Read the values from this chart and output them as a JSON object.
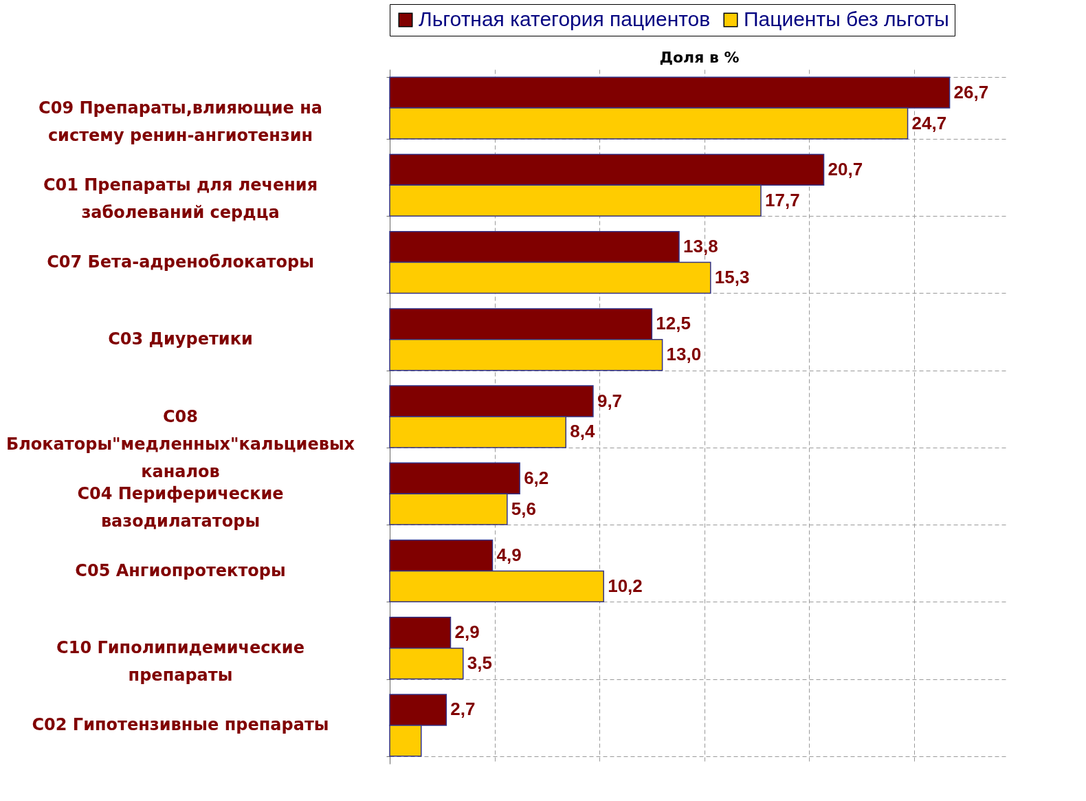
{
  "chart_data": {
    "type": "bar",
    "orientation": "horizontal",
    "xlabel": "Доля в %",
    "categories": [
      "C09 Препараты,влияющие на систему ренин-ангиотензин",
      "C01 Препараты для лечения заболеваний сердца",
      "C07 Бета-адреноблокаторы",
      "C03 Диуретики",
      "C08 Блокаторы\"медленных\"кальциевых каналов",
      "C04 Периферические вазодилататоры",
      "C05 Ангиопротекторы",
      "C10 Гиполипидемические препараты",
      "C02 Гипотензивные препараты"
    ],
    "series": [
      {
        "name": "Льготная категория пациентов",
        "color": "#800000",
        "values": [
          26.7,
          20.7,
          13.8,
          12.5,
          9.7,
          6.2,
          4.9,
          2.9,
          2.7
        ],
        "value_labels": [
          "26,7",
          "20,7",
          "13,8",
          "12,5",
          "9,7",
          "6,2",
          "4,9",
          "2,9",
          "2,7"
        ]
      },
      {
        "name": "Пациенты без льготы",
        "color": "#ffcc00",
        "values": [
          24.7,
          17.7,
          15.3,
          13.0,
          8.4,
          5.6,
          10.2,
          3.5,
          1.5
        ],
        "value_labels": [
          "24,7",
          "17,7",
          "15,3",
          "13,0",
          "8,4",
          "5,6",
          "10,2",
          "3,5",
          null
        ]
      }
    ],
    "xlim": [
      0,
      29.5
    ],
    "xticks": [
      {
        "value": 0,
        "label": null
      },
      {
        "value": 5,
        "label": null
      },
      {
        "value": 10,
        "label": null
      },
      {
        "value": 15,
        "label": null
      },
      {
        "value": 20,
        "label": null
      },
      {
        "value": 25,
        "label": null
      }
    ],
    "tick_labels": "y",
    "grid": true,
    "legend": "top"
  }
}
